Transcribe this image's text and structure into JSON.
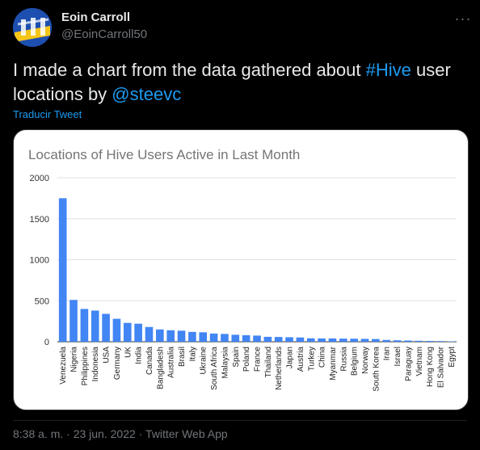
{
  "tweet": {
    "display_name": "Eoin Carroll",
    "handle": "@EoinCarroll50",
    "more_label": "···",
    "text_parts": {
      "p1": "I made a chart from the data gathered about ",
      "hashtag": "#Hive",
      "p2": " user locations by ",
      "mention": "@steevc"
    },
    "translate_label": "Traducir Tweet",
    "timestamp": "8:38 a. m. · 23 jun. 2022",
    "separator": " · ",
    "source": "Twitter Web App"
  },
  "colors": {
    "background": "#000000",
    "link": "#1d9bf0",
    "bar": "#4285f4",
    "avatar_primary": "#1d4fb0",
    "avatar_accent": "#f5c518"
  },
  "chart_data": {
    "type": "bar",
    "title": "Locations of Hive Users Active in Last Month",
    "xlabel": "",
    "ylabel": "",
    "ylim": [
      0,
      2000
    ],
    "yticks": [
      0,
      500,
      1000,
      1500,
      2000
    ],
    "grid": true,
    "legend": "none",
    "categories": [
      "Venezuela",
      "Nigeria",
      "Philippines",
      "Indonesia",
      "USA",
      "Germany",
      "UK",
      "India",
      "Canada",
      "Bangladesh",
      "Australia",
      "Brasil",
      "Italy",
      "Ukraine",
      "South Africa",
      "Malaysia",
      "Spain",
      "Poland",
      "France",
      "Thailand",
      "Netherlands",
      "Japan",
      "Austria",
      "Turkey",
      "China",
      "Myanmar",
      "Russia",
      "Belgium",
      "Norway",
      "South Korea",
      "Iran",
      "Israel",
      "Paraguay",
      "Vietnam",
      "Hong Kong",
      "El Salvador",
      "Egypt"
    ],
    "values": [
      1750,
      510,
      400,
      380,
      340,
      280,
      230,
      220,
      180,
      150,
      140,
      135,
      120,
      115,
      100,
      95,
      85,
      80,
      75,
      60,
      58,
      55,
      52,
      42,
      40,
      40,
      38,
      37,
      35,
      33,
      22,
      18,
      15,
      12,
      10,
      8,
      5
    ]
  }
}
